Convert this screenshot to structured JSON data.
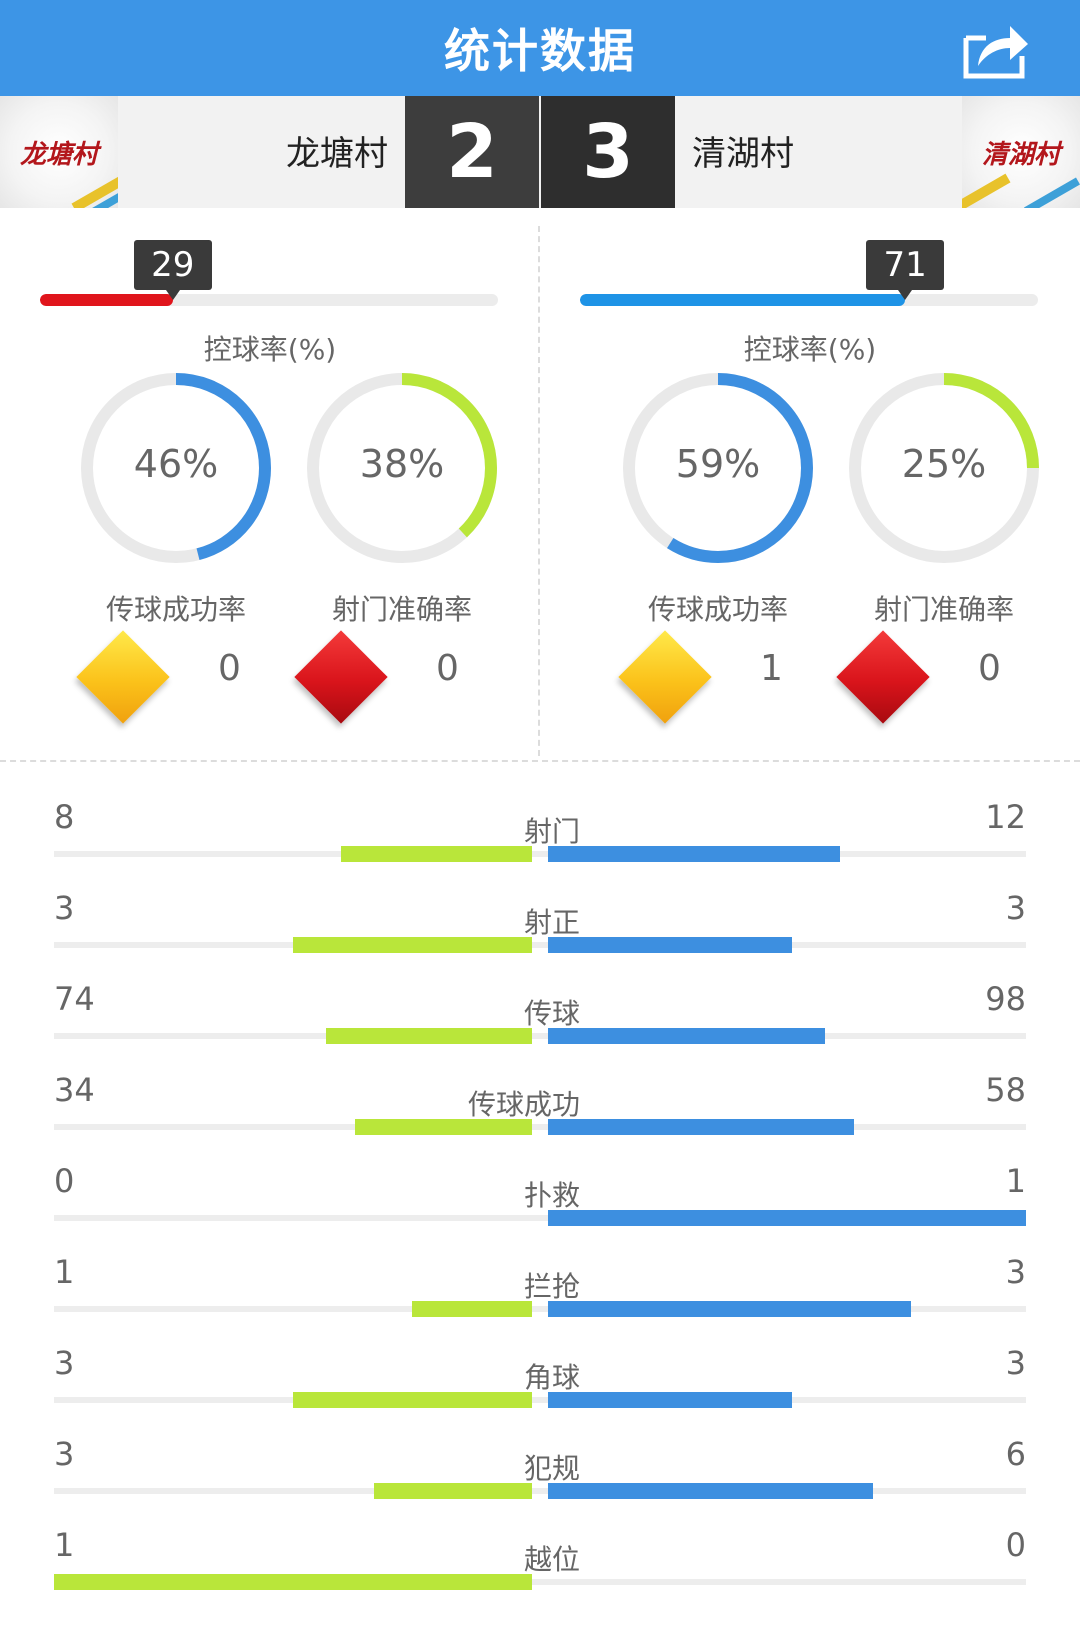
{
  "header": {
    "title": "统计数据",
    "share_icon": "share-icon"
  },
  "colors": {
    "header_bg": "#3d95e6",
    "home_accent": "#b9e63a",
    "away_accent": "#3d8fe0",
    "possession_home": "#e0151c",
    "possession_away": "#1e93e6",
    "ring_pass": "#3d8fe0",
    "ring_shot": "#b9e63a"
  },
  "match": {
    "home": {
      "name": "龙塘村",
      "badge_text": "龙塘村",
      "score": "2"
    },
    "away": {
      "name": "清湖村",
      "badge_text": "清湖村",
      "score": "3"
    }
  },
  "home_panel": {
    "possession": 29,
    "possession_label": "29",
    "possession_caption": "控球率(%)",
    "pass_rate": 46,
    "pass_rate_label": "46%",
    "pass_caption": "传球成功率",
    "shot_rate": 38,
    "shot_rate_label": "38%",
    "shot_caption": "射门准确率",
    "yellow_cards": "0",
    "red_cards": "0"
  },
  "away_panel": {
    "possession": 71,
    "possession_label": "71",
    "possession_caption": "控球率(%)",
    "pass_rate": 59,
    "pass_rate_label": "59%",
    "pass_caption": "传球成功率",
    "shot_rate": 25,
    "shot_rate_label": "25%",
    "shot_caption": "射门准确率",
    "yellow_cards": "1",
    "red_cards": "0"
  },
  "stats": [
    {
      "name": "射门",
      "home": "8",
      "away": "12",
      "home_bar": 0.4,
      "away_bar": 0.61
    },
    {
      "name": "射正",
      "home": "3",
      "away": "3",
      "home_bar": 0.5,
      "away_bar": 0.51
    },
    {
      "name": "传球",
      "home": "74",
      "away": "98",
      "home_bar": 0.43,
      "away_bar": 0.58
    },
    {
      "name": "传球成功",
      "home": "34",
      "away": "58",
      "home_bar": 0.37,
      "away_bar": 0.64
    },
    {
      "name": "扑救",
      "home": "0",
      "away": "1",
      "home_bar": 0.0,
      "away_bar": 1.0
    },
    {
      "name": "拦抢",
      "home": "1",
      "away": "3",
      "home_bar": 0.25,
      "away_bar": 0.76
    },
    {
      "name": "角球",
      "home": "3",
      "away": "3",
      "home_bar": 0.5,
      "away_bar": 0.51
    },
    {
      "name": "犯规",
      "home": "3",
      "away": "6",
      "home_bar": 0.33,
      "away_bar": 0.68
    },
    {
      "name": "越位",
      "home": "1",
      "away": "0",
      "home_bar": 1.0,
      "away_bar": 0.0
    }
  ]
}
